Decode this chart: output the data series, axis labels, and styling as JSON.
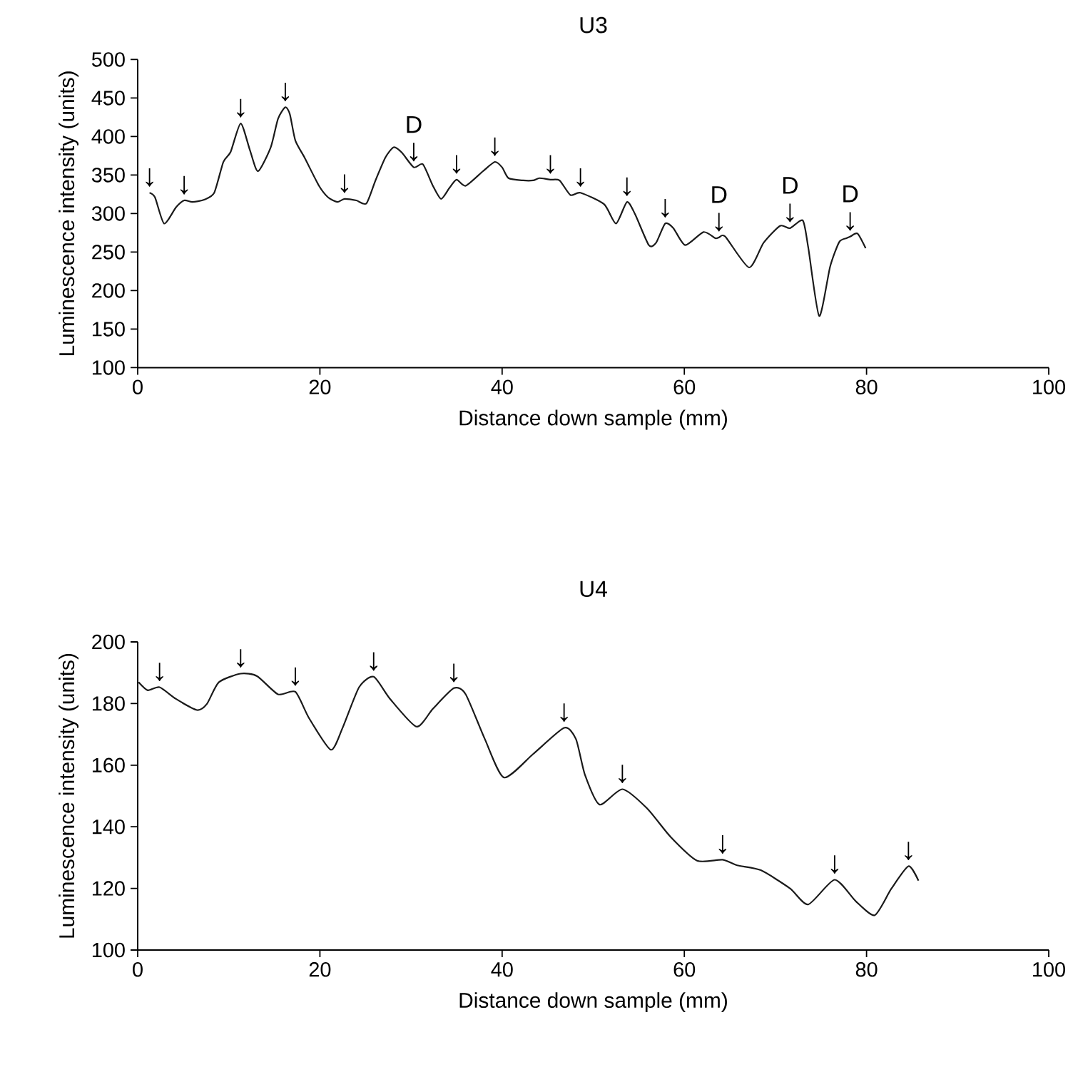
{
  "chart_data": [
    {
      "type": "line",
      "title": "U3",
      "xlabel": "Distance down sample (mm)",
      "ylabel": "Luminescence intensity (units)",
      "xlim": [
        0,
        100
      ],
      "ylim": [
        100,
        500
      ],
      "xticks": [
        0,
        20,
        40,
        60,
        80,
        100
      ],
      "yticks": [
        100,
        150,
        200,
        250,
        300,
        350,
        400,
        450,
        500
      ],
      "marker": "none",
      "line_style": "solid",
      "series": [
        {
          "color": "#1a1a1a",
          "x": [
            1.3,
            1.9,
            2.9,
            4.2,
            5.1,
            6.0,
            7.3,
            8.4,
            9.4,
            10.2,
            11.3,
            12.3,
            13.2,
            14.6,
            15.4,
            16.2,
            16.7,
            17.3,
            18.3,
            19.9,
            20.9,
            21.9,
            22.7,
            24.0,
            25.1,
            26.1,
            27.2,
            28.1,
            29.0,
            30.3,
            31.3,
            32.4,
            33.3,
            34.2,
            35.0,
            36.0,
            37.9,
            39.2,
            40.0,
            40.7,
            42.3,
            43.4,
            44.1,
            45.3,
            46.3,
            47.5,
            48.6,
            51.2,
            52.5,
            53.7,
            54.6,
            56.1,
            56.9,
            57.9,
            58.8,
            60.1,
            62.1,
            63.4,
            63.8,
            64.5,
            67.1,
            68.7,
            70.5,
            71.6,
            73.0,
            73.6,
            74.8,
            76.0,
            77.0,
            77.8,
            78.2,
            79.0,
            79.9
          ],
          "values": [
            327,
            321,
            287,
            308,
            317,
            315,
            318,
            327,
            367,
            380,
            417,
            383,
            355,
            386,
            423,
            438,
            429,
            395,
            373,
            336,
            321,
            315,
            319,
            317,
            313,
            343,
            373,
            386,
            379,
            360,
            364,
            336,
            319,
            333,
            344,
            336,
            355,
            367,
            360,
            346,
            343,
            343,
            346,
            344,
            343,
            324,
            327,
            312,
            287,
            315,
            299,
            259,
            262,
            287,
            281,
            259,
            276,
            268,
            269,
            270,
            230,
            262,
            284,
            281,
            291,
            256,
            167,
            231,
            263,
            268,
            270,
            274,
            255
          ]
        }
      ],
      "annotations": [
        {
          "text": "↓",
          "x": 1.3,
          "y": 327
        },
        {
          "text": "↓",
          "x": 5.1,
          "y": 317
        },
        {
          "text": "↓",
          "x": 11.3,
          "y": 417
        },
        {
          "text": "↓",
          "x": 16.2,
          "y": 438
        },
        {
          "text": "↓",
          "x": 22.7,
          "y": 319
        },
        {
          "text": "↓",
          "x": 30.3,
          "y": 360
        },
        {
          "text": "D",
          "x": 30.3,
          "y": 360
        },
        {
          "text": "↓",
          "x": 35.0,
          "y": 344
        },
        {
          "text": "↓",
          "x": 39.2,
          "y": 367
        },
        {
          "text": "↓",
          "x": 45.3,
          "y": 344
        },
        {
          "text": "↓",
          "x": 48.6,
          "y": 327
        },
        {
          "text": "↓",
          "x": 53.7,
          "y": 315
        },
        {
          "text": "↓",
          "x": 57.9,
          "y": 287
        },
        {
          "text": "↓",
          "x": 63.8,
          "y": 269
        },
        {
          "text": "D",
          "x": 63.8,
          "y": 269
        },
        {
          "text": "↓",
          "x": 71.6,
          "y": 281
        },
        {
          "text": "D",
          "x": 71.6,
          "y": 281
        },
        {
          "text": "↓",
          "x": 78.2,
          "y": 270
        },
        {
          "text": "D",
          "x": 78.2,
          "y": 270
        }
      ]
    },
    {
      "type": "line",
      "title": "U4",
      "xlabel": "Distance down sample (mm)",
      "ylabel": "Luminescence intensity (units)",
      "xlim": [
        0,
        100
      ],
      "ylim": [
        100,
        200
      ],
      "xticks": [
        0,
        20,
        40,
        60,
        80,
        100
      ],
      "yticks": [
        100,
        120,
        140,
        160,
        180,
        200
      ],
      "marker": "none",
      "line_style": "solid",
      "series": [
        {
          "color": "#1a1a1a",
          "x": [
            0.1,
            1.1,
            2.4,
            4.2,
            6.5,
            7.6,
            8.9,
            11.3,
            13.1,
            15.4,
            17.3,
            18.8,
            21.2,
            22.5,
            24.3,
            25.9,
            27.7,
            30.6,
            32.4,
            34.7,
            36.0,
            38.1,
            40.2,
            43.4,
            46.8,
            48.1,
            49.1,
            50.7,
            53.2,
            55.9,
            58.5,
            61.4,
            64.2,
            65.8,
            68.4,
            71.6,
            73.6,
            76.5,
            78.8,
            80.9,
            82.7,
            84.6,
            85.7
          ],
          "values": [
            186.9,
            184.3,
            185.3,
            181.5,
            177.9,
            179.9,
            186.9,
            189.7,
            188.9,
            183.0,
            183.8,
            175.3,
            165.0,
            172.2,
            185.3,
            188.7,
            181.5,
            172.5,
            178.3,
            185.0,
            183.0,
            168.5,
            156.0,
            163.6,
            172.1,
            168.5,
            156.8,
            147.2,
            152.2,
            146.0,
            136.7,
            129.0,
            129.3,
            127.5,
            125.9,
            120.0,
            114.8,
            122.8,
            115.9,
            111.3,
            119.8,
            127.2,
            122.5
          ]
        }
      ],
      "annotations": [
        {
          "text": "↓",
          "x": 2.4,
          "y": 185.3
        },
        {
          "text": "↓",
          "x": 11.3,
          "y": 189.7
        },
        {
          "text": "↓",
          "x": 17.3,
          "y": 183.8
        },
        {
          "text": "↓",
          "x": 25.9,
          "y": 188.7
        },
        {
          "text": "↓",
          "x": 34.7,
          "y": 185.0
        },
        {
          "text": "↓",
          "x": 46.8,
          "y": 172.1
        },
        {
          "text": "↓",
          "x": 53.2,
          "y": 152.2
        },
        {
          "text": "↓",
          "x": 64.2,
          "y": 129.3
        },
        {
          "text": "↓",
          "x": 76.5,
          "y": 122.8
        },
        {
          "text": "↓",
          "x": 84.6,
          "y": 127.2
        }
      ]
    }
  ]
}
